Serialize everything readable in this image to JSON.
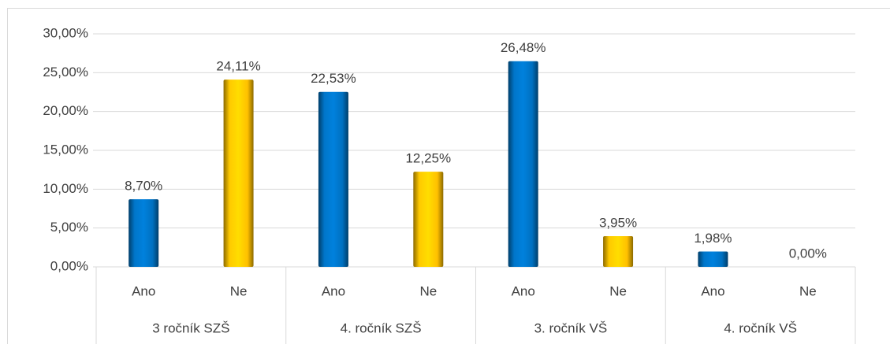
{
  "chart_data": {
    "type": "bar",
    "categories": [
      "Ano",
      "Ne",
      "Ano",
      "Ne",
      "Ano",
      "Ne",
      "Ano",
      "Ne"
    ],
    "groups": [
      "3 ročník SZŠ",
      "4. ročník SZŠ",
      "3. ročník VŠ",
      "4. ročník VŠ"
    ],
    "values": [
      8.7,
      24.11,
      22.53,
      12.25,
      26.48,
      3.95,
      1.98,
      0.0
    ],
    "value_labels": [
      "8,70%",
      "24,11%",
      "22,53%",
      "12,25%",
      "26,48%",
      "3,95%",
      "1,98%",
      "0,00%"
    ],
    "colors": [
      "#0070c0",
      "#ffc000",
      "#0070c0",
      "#ffc000",
      "#0070c0",
      "#ffc000",
      "#0070c0",
      "#ffc000"
    ],
    "ylim": [
      0,
      30
    ],
    "yticks": [
      {
        "value": 0,
        "label": "0,00%"
      },
      {
        "value": 5,
        "label": "5,00%"
      },
      {
        "value": 10,
        "label": "10,00%"
      },
      {
        "value": 15,
        "label": "15,00%"
      },
      {
        "value": 20,
        "label": "20,00%"
      },
      {
        "value": 25,
        "label": "25,00%"
      },
      {
        "value": 30,
        "label": "30,00%"
      }
    ],
    "grid": true
  }
}
